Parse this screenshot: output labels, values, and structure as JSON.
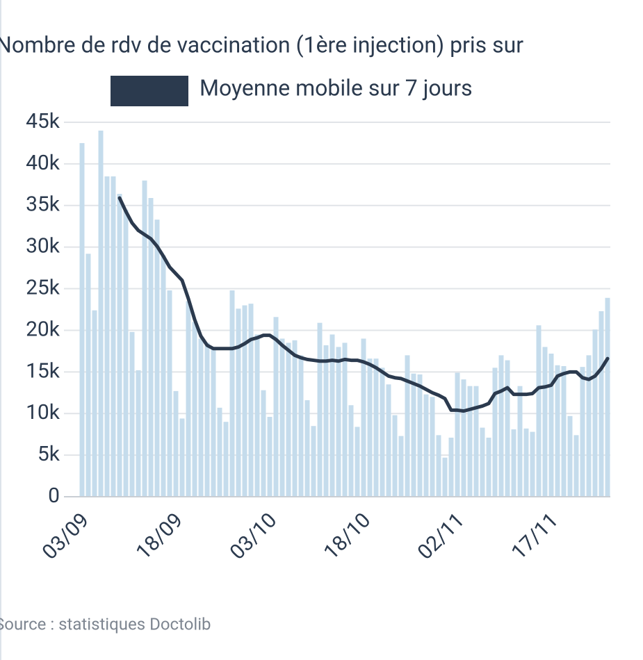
{
  "chart_data": {
    "type": "bar",
    "title": "Nombre de rdv de vaccination (1ère injection) pris sur",
    "source": "Source : statistiques Doctolib",
    "categories": [
      "03/09",
      null,
      null,
      null,
      null,
      null,
      null,
      null,
      null,
      null,
      null,
      null,
      null,
      null,
      null,
      "18/09",
      null,
      null,
      null,
      null,
      null,
      null,
      null,
      null,
      null,
      null,
      null,
      null,
      null,
      null,
      "03/10",
      null,
      null,
      null,
      null,
      null,
      null,
      null,
      null,
      null,
      null,
      null,
      null,
      null,
      null,
      "18/10",
      null,
      null,
      null,
      null,
      null,
      null,
      null,
      null,
      null,
      null,
      null,
      null,
      null,
      null,
      "02/11",
      null,
      null,
      null,
      null,
      null,
      null,
      null,
      null,
      null,
      null,
      null,
      null,
      null,
      null,
      "17/11",
      null,
      null,
      null,
      null,
      null,
      null,
      null,
      null,
      null
    ],
    "series": [
      {
        "color": "#c5dcec",
        "values": [
          42500,
          29200,
          22400,
          44000,
          38500,
          38500,
          36400,
          34500,
          19800,
          15200,
          38000,
          35900,
          33300,
          29000,
          24800,
          12700,
          9400,
          23500,
          21000,
          19000,
          18500,
          18000,
          10700,
          9000,
          24800,
          22600,
          23000,
          23200,
          19500,
          12800,
          9600,
          21600,
          19000,
          18500,
          18800,
          17000,
          11600,
          8500,
          20900,
          18200,
          19500,
          18000,
          18500,
          11000,
          8400,
          19000,
          16600,
          16600,
          15500,
          13500,
          9800,
          7300,
          17000,
          14800,
          14700,
          12300,
          12000,
          7400,
          4700,
          7100,
          14900,
          14100,
          13300,
          13300,
          8300,
          7100,
          15500,
          17000,
          16400,
          8100,
          13300,
          8200,
          7800,
          20600,
          18000,
          17200,
          15800,
          15700,
          9700,
          7400,
          15600,
          17000,
          20100,
          22300,
          23900
        ]
      },
      {
        "name": "Moyenne mobile sur 7 jours",
        "type": "line",
        "color": "#2b3a4e",
        "values": [
          null,
          null,
          null,
          null,
          null,
          null,
          35900,
          34300,
          32900,
          32000,
          31500,
          31000,
          30100,
          28900,
          27600,
          26800,
          26000,
          23800,
          21300,
          19300,
          18200,
          17800,
          17800,
          17800,
          17800,
          18000,
          18400,
          18900,
          19100,
          19400,
          19400,
          18900,
          18200,
          17600,
          17000,
          16700,
          16500,
          16400,
          16300,
          16300,
          16400,
          16300,
          16500,
          16400,
          16400,
          16200,
          15900,
          15500,
          15000,
          14500,
          14300,
          14200,
          13900,
          13600,
          13300,
          12900,
          12500,
          12200,
          11800,
          10400,
          10400,
          10300,
          10500,
          10700,
          10900,
          11200,
          12400,
          12700,
          13100,
          12300,
          12300,
          12300,
          12400,
          13100,
          13200,
          13400,
          14500,
          14800,
          15000,
          15000,
          14300,
          14100,
          14500,
          15400,
          16600
        ]
      }
    ],
    "ylim": [
      0,
      45000
    ],
    "yticks": [
      {
        "value": 0,
        "label": "0"
      },
      {
        "value": 5000,
        "label": "5k"
      },
      {
        "value": 10000,
        "label": "10k"
      },
      {
        "value": 15000,
        "label": "15k"
      },
      {
        "value": 20000,
        "label": "20k"
      },
      {
        "value": 25000,
        "label": "25k"
      },
      {
        "value": 30000,
        "label": "30k"
      },
      {
        "value": 35000,
        "label": "35k"
      },
      {
        "value": 40000,
        "label": "40k"
      },
      {
        "value": 45000,
        "label": "45k"
      }
    ],
    "grid": true
  }
}
